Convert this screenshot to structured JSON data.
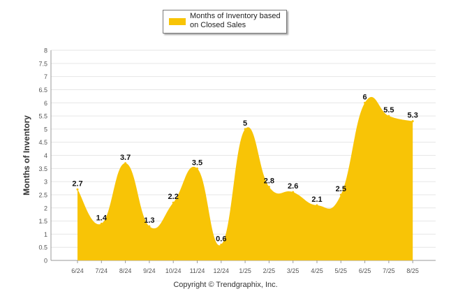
{
  "chart_data": {
    "type": "area",
    "categories": [
      "6/24",
      "7/24",
      "8/24",
      "9/24",
      "10/24",
      "11/24",
      "12/24",
      "1/25",
      "2/25",
      "3/25",
      "4/25",
      "5/25",
      "6/25",
      "7/25",
      "8/25"
    ],
    "series": [
      {
        "name": "Months of Inventory based on Closed Sales",
        "values": [
          2.7,
          1.4,
          3.7,
          1.3,
          2.2,
          3.5,
          0.6,
          5,
          2.8,
          2.6,
          2.1,
          2.5,
          6,
          5.5,
          5.3
        ],
        "color": "#f8c406"
      }
    ],
    "data_labels": [
      "2.7",
      "1.4",
      "3.7",
      "1.3",
      "2.2",
      "3.5",
      "0.6",
      "5",
      "2.8",
      "2.6",
      "2.1",
      "2.5",
      "6",
      "5.5",
      "5.3"
    ],
    "ylabel": "Months of Inventory",
    "xlabel": "",
    "ylim": [
      0,
      8
    ],
    "yticks": [
      "0",
      "0.5",
      "1",
      "1.5",
      "2",
      "2.5",
      "3",
      "3.5",
      "4",
      "4.5",
      "5",
      "5.5",
      "6",
      "6.5",
      "7",
      "7.5",
      "8"
    ],
    "grid": true,
    "legend_position": "top-center"
  },
  "legend": {
    "label": "Months of Inventory based on Closed Sales"
  },
  "footer": {
    "copyright": "Copyright © Trendgraphix, Inc."
  },
  "colors": {
    "fill": "#f8c406",
    "grid": "#e6e6e6",
    "axis": "#999999"
  }
}
